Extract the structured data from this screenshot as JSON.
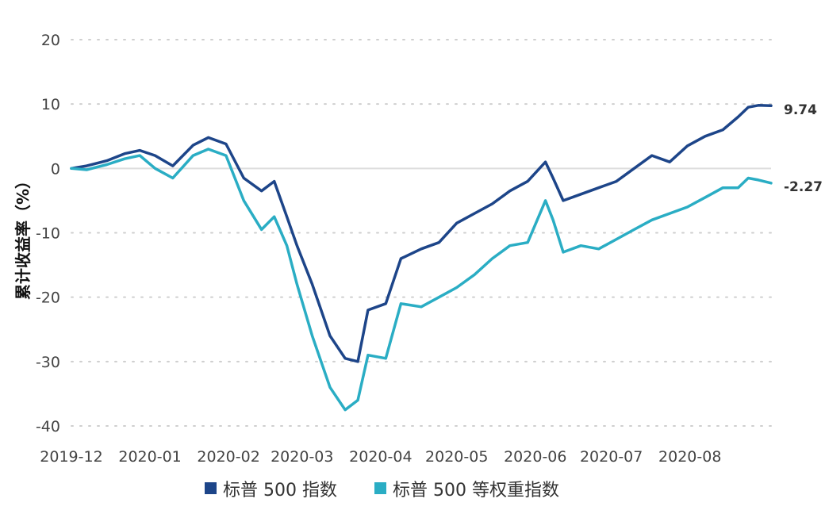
{
  "chart_data": {
    "type": "line",
    "ylabel": "累计收益率（%）",
    "ylim": [
      -40,
      20
    ],
    "yticks": [
      20,
      10,
      0,
      -10,
      -20,
      -30,
      -40
    ],
    "xticks": [
      "2019-12",
      "2020-01",
      "2020-02",
      "2020-03",
      "2020-04",
      "2020-05",
      "2020-06",
      "2020-07",
      "2020-08"
    ],
    "grid": true,
    "legend_position": "bottom",
    "colors": {
      "sp500": "#1d4589",
      "ew": "#2aadc4"
    },
    "series": [
      {
        "name": "标普 500 指数",
        "end_label": "9.74",
        "x": [
          "2019-12-01",
          "2019-12-07",
          "2019-12-15",
          "2019-12-22",
          "2019-12-28",
          "2020-01-03",
          "2020-01-10",
          "2020-01-18",
          "2020-01-24",
          "2020-01-31",
          "2020-02-07",
          "2020-02-14",
          "2020-02-19",
          "2020-02-24",
          "2020-02-28",
          "2020-03-05",
          "2020-03-12",
          "2020-03-18",
          "2020-03-23",
          "2020-03-27",
          "2020-04-03",
          "2020-04-09",
          "2020-04-17",
          "2020-04-24",
          "2020-05-01",
          "2020-05-08",
          "2020-05-15",
          "2020-05-22",
          "2020-05-29",
          "2020-06-05",
          "2020-06-08",
          "2020-06-12",
          "2020-06-19",
          "2020-06-26",
          "2020-07-03",
          "2020-07-10",
          "2020-07-17",
          "2020-07-24",
          "2020-07-31",
          "2020-08-07",
          "2020-08-14",
          "2020-08-20",
          "2020-08-24",
          "2020-08-28",
          "2020-09-02"
        ],
        "values": [
          0.0,
          0.4,
          1.2,
          2.3,
          2.8,
          2.0,
          0.4,
          3.6,
          4.8,
          3.8,
          -1.5,
          -3.5,
          -2.0,
          -7.5,
          -12.0,
          -18.0,
          -26.0,
          -29.5,
          -30.0,
          -22.0,
          -21.0,
          -14.0,
          -12.5,
          -11.5,
          -8.5,
          -7.0,
          -5.5,
          -3.5,
          -2.0,
          1.0,
          -1.5,
          -5.0,
          -4.0,
          -3.0,
          -2.0,
          0.0,
          2.0,
          1.0,
          3.5,
          5.0,
          6.0,
          8.0,
          9.5,
          9.8,
          9.74
        ]
      },
      {
        "name": "标普 500 等权重指数",
        "end_label": "-2.27",
        "x": [
          "2019-12-01",
          "2019-12-07",
          "2019-12-15",
          "2019-12-22",
          "2019-12-28",
          "2020-01-03",
          "2020-01-10",
          "2020-01-18",
          "2020-01-24",
          "2020-01-31",
          "2020-02-07",
          "2020-02-14",
          "2020-02-19",
          "2020-02-24",
          "2020-02-28",
          "2020-03-05",
          "2020-03-12",
          "2020-03-18",
          "2020-03-23",
          "2020-03-27",
          "2020-04-03",
          "2020-04-09",
          "2020-04-17",
          "2020-04-24",
          "2020-05-01",
          "2020-05-08",
          "2020-05-15",
          "2020-05-22",
          "2020-05-29",
          "2020-06-05",
          "2020-06-08",
          "2020-06-12",
          "2020-06-19",
          "2020-06-26",
          "2020-07-03",
          "2020-07-10",
          "2020-07-17",
          "2020-07-24",
          "2020-07-31",
          "2020-08-07",
          "2020-08-14",
          "2020-08-20",
          "2020-08-24",
          "2020-08-28",
          "2020-09-02"
        ],
        "values": [
          0.0,
          -0.2,
          0.6,
          1.5,
          2.0,
          0.0,
          -1.5,
          2.0,
          3.0,
          2.0,
          -5.0,
          -9.5,
          -7.5,
          -12.0,
          -18.0,
          -26.0,
          -34.0,
          -37.5,
          -36.0,
          -29.0,
          -29.5,
          -21.0,
          -21.5,
          -20.0,
          -18.5,
          -16.5,
          -14.0,
          -12.0,
          -11.5,
          -5.0,
          -8.0,
          -13.0,
          -12.0,
          -12.5,
          -11.0,
          -9.5,
          -8.0,
          -7.0,
          -6.0,
          -4.5,
          -3.0,
          -3.0,
          -1.5,
          -1.8,
          -2.27
        ]
      }
    ]
  }
}
